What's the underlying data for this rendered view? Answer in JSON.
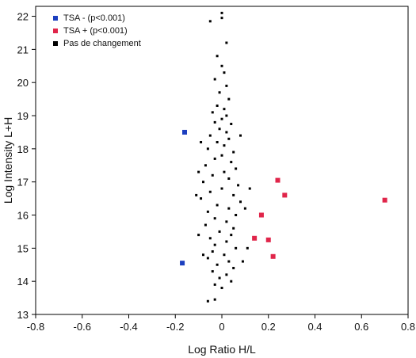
{
  "chart_data": {
    "type": "scatter",
    "xlabel": "Log Ratio H/L",
    "ylabel": "Log Intensity L+H",
    "xlim": [
      -0.8,
      0.8
    ],
    "ylim": [
      13,
      22.3
    ],
    "x_ticks": [
      -0.8,
      -0.6,
      -0.4,
      -0.2,
      0,
      0.2,
      0.4,
      0.6,
      0.8
    ],
    "y_ticks": [
      13,
      14,
      15,
      16,
      17,
      18,
      19,
      20,
      21,
      22
    ],
    "x_tick_labels": [
      "-0.8",
      "-0.6",
      "-0.4",
      "-0.2",
      "0",
      "0.2",
      "0.4",
      "0.6",
      "0.8"
    ],
    "y_tick_labels": [
      "13",
      "14",
      "15",
      "16",
      "17",
      "18",
      "19",
      "20",
      "21",
      "22"
    ],
    "grid": false,
    "legend_position": "top-left",
    "series": [
      {
        "name": "TSA - (p<0.001)",
        "color": "#1c3fbf",
        "points": [
          [
            -0.16,
            18.5
          ],
          [
            -0.17,
            14.55
          ]
        ]
      },
      {
        "name": "TSA + (p<0.001)",
        "color": "#e0254a",
        "points": [
          [
            0.24,
            17.05
          ],
          [
            0.27,
            16.6
          ],
          [
            0.17,
            16.0
          ],
          [
            0.7,
            16.45
          ],
          [
            0.14,
            15.3
          ],
          [
            0.2,
            15.25
          ],
          [
            0.22,
            14.75
          ]
        ]
      },
      {
        "name": "Pas de changement",
        "color": "#000000",
        "points": [
          [
            0.0,
            22.1
          ],
          [
            0.0,
            21.95
          ],
          [
            -0.05,
            21.85
          ],
          [
            0.02,
            21.2
          ],
          [
            -0.02,
            20.8
          ],
          [
            0.0,
            20.5
          ],
          [
            0.01,
            20.3
          ],
          [
            -0.03,
            20.1
          ],
          [
            0.02,
            19.9
          ],
          [
            -0.01,
            19.7
          ],
          [
            0.03,
            19.5
          ],
          [
            -0.02,
            19.3
          ],
          [
            0.01,
            19.2
          ],
          [
            -0.04,
            19.1
          ],
          [
            0.02,
            19.0
          ],
          [
            0.0,
            18.9
          ],
          [
            -0.03,
            18.8
          ],
          [
            0.04,
            18.75
          ],
          [
            -0.01,
            18.6
          ],
          [
            0.02,
            18.5
          ],
          [
            -0.05,
            18.4
          ],
          [
            0.03,
            18.3
          ],
          [
            -0.02,
            18.2
          ],
          [
            0.01,
            18.1
          ],
          [
            -0.06,
            18.0
          ],
          [
            0.05,
            17.9
          ],
          [
            0.0,
            17.8
          ],
          [
            -0.03,
            17.7
          ],
          [
            0.04,
            17.6
          ],
          [
            -0.07,
            17.5
          ],
          [
            0.06,
            17.4
          ],
          [
            0.01,
            17.3
          ],
          [
            -0.04,
            17.2
          ],
          [
            0.03,
            17.1
          ],
          [
            -0.08,
            17.0
          ],
          [
            0.07,
            16.9
          ],
          [
            0.0,
            16.8
          ],
          [
            -0.05,
            16.7
          ],
          [
            0.05,
            16.6
          ],
          [
            -0.09,
            16.5
          ],
          [
            0.08,
            16.4
          ],
          [
            -0.02,
            16.3
          ],
          [
            0.03,
            16.2
          ],
          [
            -0.06,
            16.1
          ],
          [
            0.06,
            16.0
          ],
          [
            -0.03,
            15.9
          ],
          [
            0.02,
            15.8
          ],
          [
            -0.07,
            15.7
          ],
          [
            0.05,
            15.6
          ],
          [
            -0.01,
            15.5
          ],
          [
            0.04,
            15.4
          ],
          [
            -0.05,
            15.3
          ],
          [
            0.02,
            15.2
          ],
          [
            -0.03,
            15.1
          ],
          [
            0.06,
            15.0
          ],
          [
            -0.04,
            14.9
          ],
          [
            0.01,
            14.8
          ],
          [
            -0.06,
            14.7
          ],
          [
            0.03,
            14.6
          ],
          [
            -0.02,
            14.5
          ],
          [
            0.05,
            14.4
          ],
          [
            -0.04,
            14.3
          ],
          [
            0.02,
            14.2
          ],
          [
            -0.01,
            14.1
          ],
          [
            0.04,
            14.0
          ],
          [
            -0.03,
            13.9
          ],
          [
            0.0,
            13.8
          ],
          [
            -0.06,
            13.4
          ],
          [
            -0.03,
            13.45
          ],
          [
            -0.1,
            17.3
          ],
          [
            0.1,
            16.2
          ],
          [
            -0.11,
            16.6
          ],
          [
            0.12,
            16.8
          ],
          [
            -0.1,
            15.4
          ],
          [
            0.11,
            15.0
          ],
          [
            -0.08,
            14.8
          ],
          [
            0.09,
            14.6
          ],
          [
            -0.09,
            18.2
          ],
          [
            0.08,
            18.4
          ]
        ]
      }
    ]
  }
}
